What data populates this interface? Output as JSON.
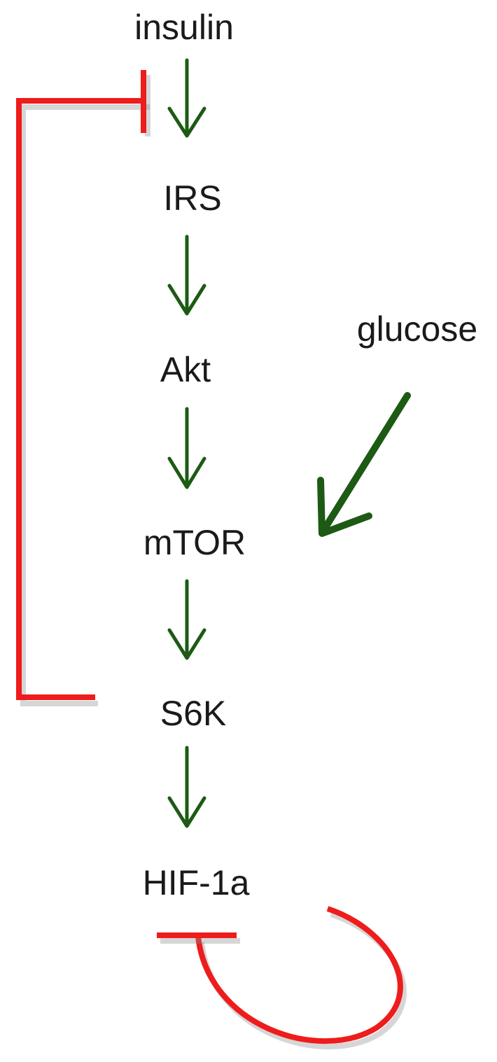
{
  "nodes": {
    "insulin": "insulin",
    "irs": "IRS",
    "akt": "Akt",
    "mtor": "mTOR",
    "s6k": "S6K",
    "hif1a": "HIF-1a",
    "glucose": "glucose"
  },
  "colors": {
    "activation": "#1d5a14",
    "inhibition": "#ee1c1c",
    "text": "#1a1a1a"
  }
}
